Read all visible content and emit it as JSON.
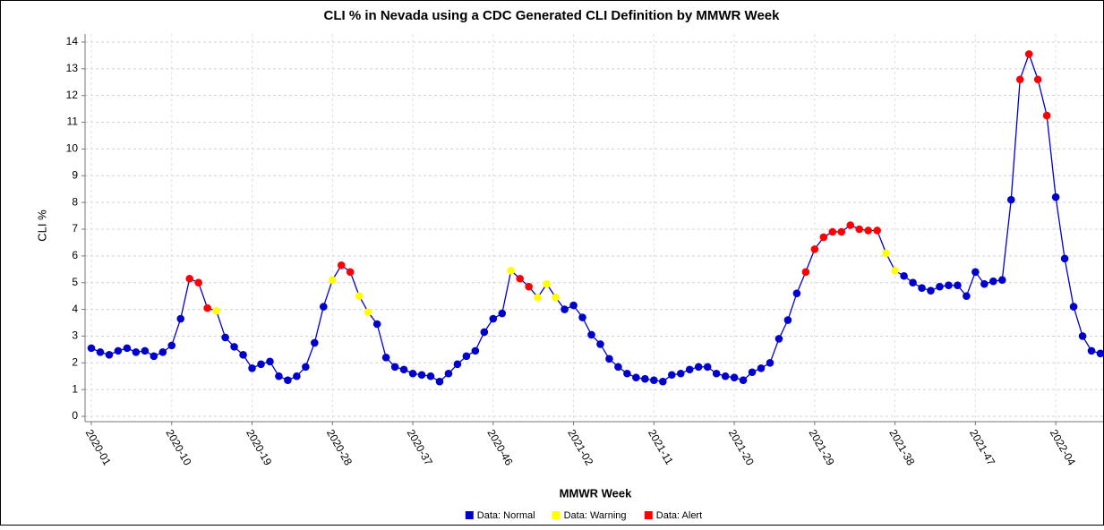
{
  "chart_data": {
    "type": "line",
    "title": "CLI % in Nevada using a CDC Generated CLI Definition by MMWR Week",
    "x_label": "MMWR Week",
    "y_label": "CLI %",
    "categories": [
      "2020-01",
      null,
      null,
      null,
      null,
      null,
      null,
      null,
      null,
      "2020-10",
      null,
      null,
      null,
      null,
      null,
      null,
      null,
      null,
      "2020-19",
      null,
      null,
      null,
      null,
      null,
      null,
      null,
      null,
      "2020-28",
      null,
      null,
      null,
      null,
      null,
      null,
      null,
      null,
      "2020-37",
      null,
      null,
      null,
      null,
      null,
      null,
      null,
      null,
      "2020-46",
      null,
      null,
      null,
      null,
      null,
      null,
      null,
      null,
      "2021-02",
      null,
      null,
      null,
      null,
      null,
      null,
      null,
      null,
      "2021-11",
      null,
      null,
      null,
      null,
      null,
      null,
      null,
      null,
      "2021-20",
      null,
      null,
      null,
      null,
      null,
      null,
      null,
      null,
      "2021-29",
      null,
      null,
      null,
      null,
      null,
      null,
      null,
      null,
      "2021-38",
      null,
      null,
      null,
      null,
      null,
      null,
      null,
      null,
      "2021-47",
      null,
      null,
      null,
      null,
      null,
      null,
      null,
      null,
      "2022-04",
      null,
      null,
      null,
      null,
      null
    ],
    "line_color": "#0000cd",
    "series": [
      {
        "name": "Data: Normal",
        "color": "#0000cc",
        "values": [
          2.55,
          2.4,
          2.3,
          2.45,
          2.55,
          2.4,
          2.45,
          2.25,
          2.4,
          2.65,
          3.65,
          null,
          null,
          null,
          null,
          2.95,
          2.6,
          2.3,
          1.8,
          1.95,
          2.05,
          1.5,
          1.35,
          1.5,
          1.85,
          2.75,
          4.1,
          null,
          null,
          null,
          null,
          null,
          3.45,
          2.2,
          1.85,
          1.75,
          1.6,
          1.55,
          1.5,
          1.3,
          1.6,
          1.95,
          2.25,
          2.45,
          3.15,
          3.65,
          3.85,
          null,
          null,
          null,
          null,
          null,
          null,
          4.0,
          4.15,
          3.7,
          3.05,
          2.7,
          2.15,
          1.85,
          1.6,
          1.45,
          1.4,
          1.35,
          1.3,
          1.55,
          1.6,
          1.75,
          1.85,
          1.85,
          1.6,
          1.5,
          1.45,
          1.35,
          1.65,
          1.8,
          2.0,
          2.9,
          3.6,
          4.6,
          null,
          null,
          null,
          null,
          null,
          null,
          null,
          null,
          null,
          null,
          null,
          5.25,
          5.0,
          4.8,
          4.7,
          4.85,
          4.9,
          4.9,
          4.5,
          5.4,
          4.95,
          5.05,
          5.1,
          8.1,
          null,
          null,
          null,
          null,
          8.2,
          5.9,
          4.1,
          3.0,
          2.45,
          2.35
        ]
      },
      {
        "name": "Data: Warning",
        "color": "#ffff00",
        "values": [
          null,
          null,
          null,
          null,
          null,
          null,
          null,
          null,
          null,
          null,
          null,
          null,
          null,
          null,
          3.95,
          null,
          null,
          null,
          null,
          null,
          null,
          null,
          null,
          null,
          null,
          null,
          null,
          5.1,
          null,
          null,
          4.5,
          3.9,
          null,
          null,
          null,
          null,
          null,
          null,
          null,
          null,
          null,
          null,
          null,
          null,
          null,
          null,
          null,
          5.45,
          null,
          null,
          4.45,
          4.95,
          4.45,
          null,
          null,
          null,
          null,
          null,
          null,
          null,
          null,
          null,
          null,
          null,
          null,
          null,
          null,
          null,
          null,
          null,
          null,
          null,
          null,
          null,
          null,
          null,
          null,
          null,
          null,
          null,
          null,
          null,
          null,
          null,
          null,
          null,
          null,
          null,
          null,
          6.1,
          5.45,
          null,
          null,
          null,
          null,
          null,
          null,
          null,
          null,
          null,
          null,
          null,
          null,
          null,
          null,
          null,
          null,
          null,
          null,
          null,
          null,
          null,
          null,
          null
        ]
      },
      {
        "name": "Data: Alert",
        "color": "#ff0000",
        "values": [
          null,
          null,
          null,
          null,
          null,
          null,
          null,
          null,
          null,
          null,
          null,
          5.15,
          5.0,
          4.05,
          null,
          null,
          null,
          null,
          null,
          null,
          null,
          null,
          null,
          null,
          null,
          null,
          null,
          null,
          5.65,
          5.4,
          null,
          null,
          null,
          null,
          null,
          null,
          null,
          null,
          null,
          null,
          null,
          null,
          null,
          null,
          null,
          null,
          null,
          null,
          5.15,
          4.85,
          null,
          null,
          null,
          null,
          null,
          null,
          null,
          null,
          null,
          null,
          null,
          null,
          null,
          null,
          null,
          null,
          null,
          null,
          null,
          null,
          null,
          null,
          null,
          null,
          null,
          null,
          null,
          null,
          null,
          null,
          5.4,
          6.25,
          6.7,
          6.9,
          6.9,
          7.15,
          7.0,
          6.95,
          6.95,
          null,
          null,
          null,
          null,
          null,
          null,
          null,
          null,
          null,
          null,
          null,
          null,
          null,
          null,
          null,
          12.6,
          13.55,
          12.6,
          11.25,
          null,
          null,
          null,
          null,
          null,
          null
        ]
      }
    ],
    "ylim": [
      -0.2,
      14.3
    ],
    "yticks": [
      0,
      1,
      2,
      3,
      4,
      5,
      6,
      7,
      8,
      9,
      10,
      11,
      12,
      13,
      14
    ],
    "grid": true,
    "legend": "bottom"
  }
}
